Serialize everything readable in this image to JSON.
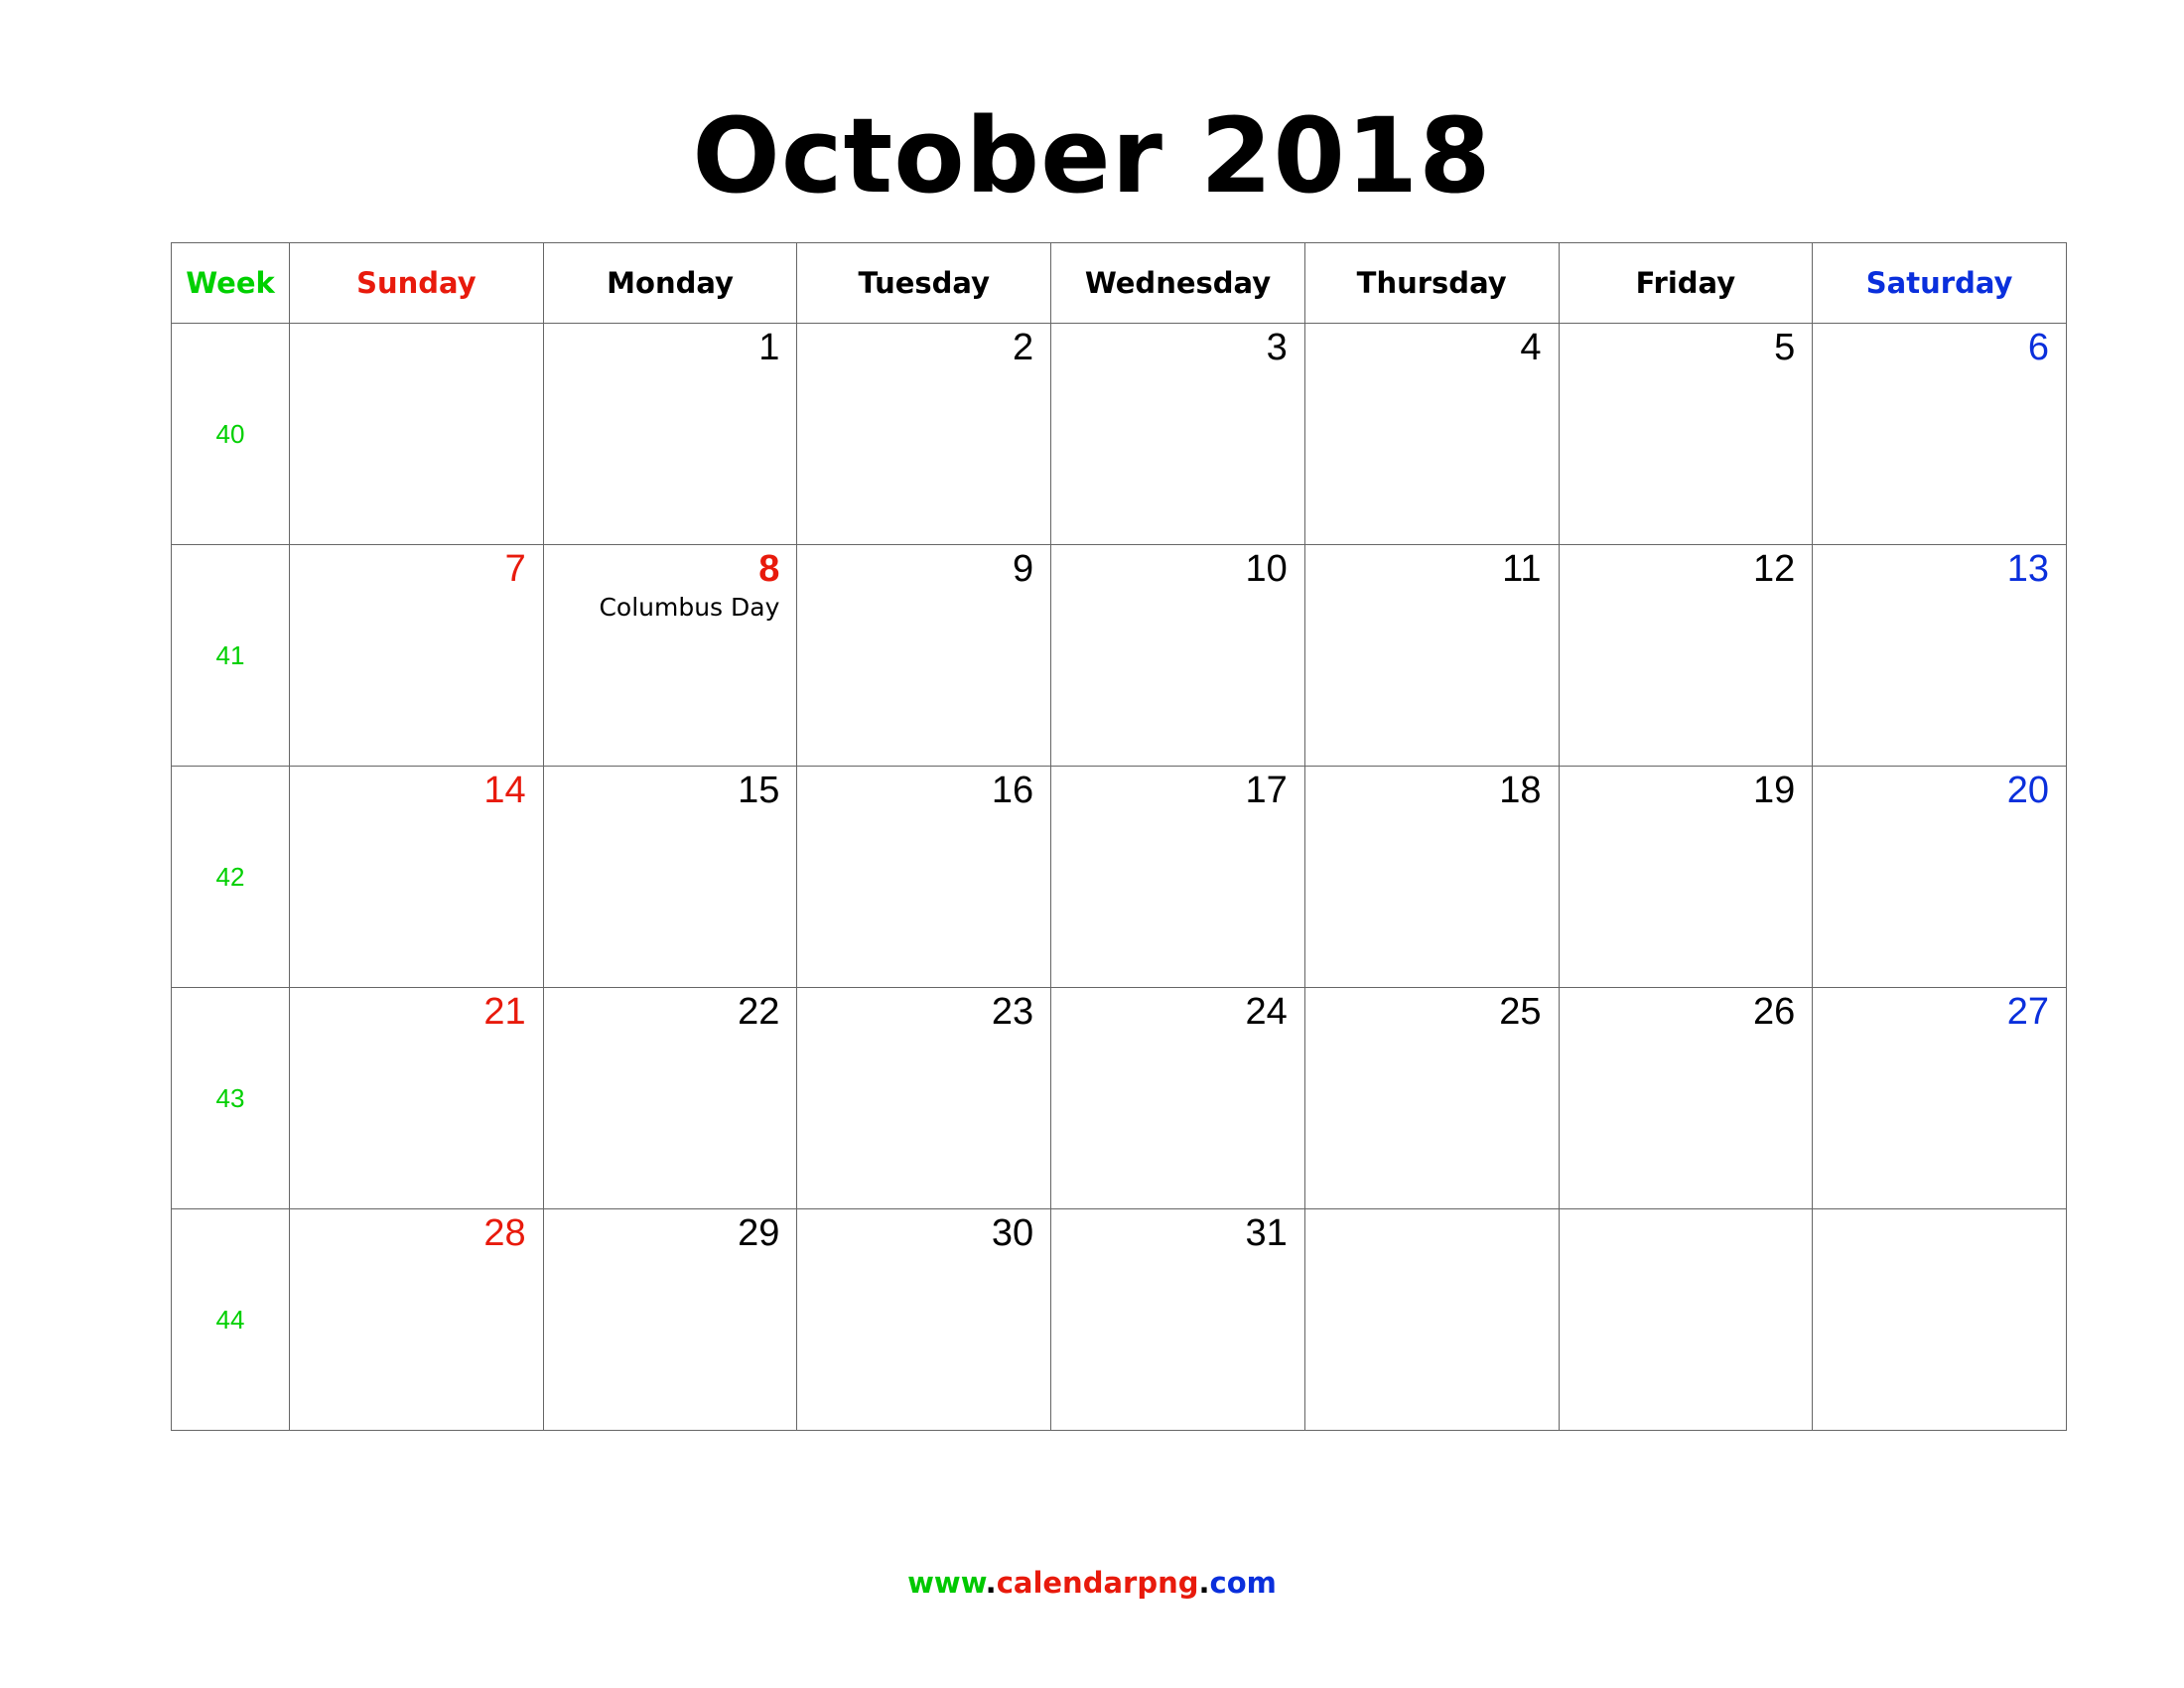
{
  "title": "October 2018",
  "headers": {
    "week": "Week",
    "days": [
      "Sunday",
      "Monday",
      "Tuesday",
      "Wednesday",
      "Thursday",
      "Friday",
      "Saturday"
    ]
  },
  "weeks": [
    {
      "number": "40",
      "days": [
        "",
        "1",
        "2",
        "3",
        "4",
        "5",
        "6"
      ]
    },
    {
      "number": "41",
      "days": [
        "7",
        "8",
        "9",
        "10",
        "11",
        "12",
        "13"
      ]
    },
    {
      "number": "42",
      "days": [
        "14",
        "15",
        "16",
        "17",
        "18",
        "19",
        "20"
      ]
    },
    {
      "number": "43",
      "days": [
        "21",
        "22",
        "23",
        "24",
        "25",
        "26",
        "27"
      ]
    },
    {
      "number": "44",
      "days": [
        "28",
        "29",
        "30",
        "31",
        "",
        "",
        ""
      ]
    }
  ],
  "events": {
    "columbus_day": "Columbus Day"
  },
  "footer": {
    "prefix": "www",
    "dot1": ".",
    "domain": "calendarpng",
    "dot2": ".",
    "tld": "com"
  },
  "colors": {
    "week": "#00d000",
    "sunday": "#e81a0c",
    "saturday": "#0a2fdc",
    "holiday": "#e81a0c"
  }
}
